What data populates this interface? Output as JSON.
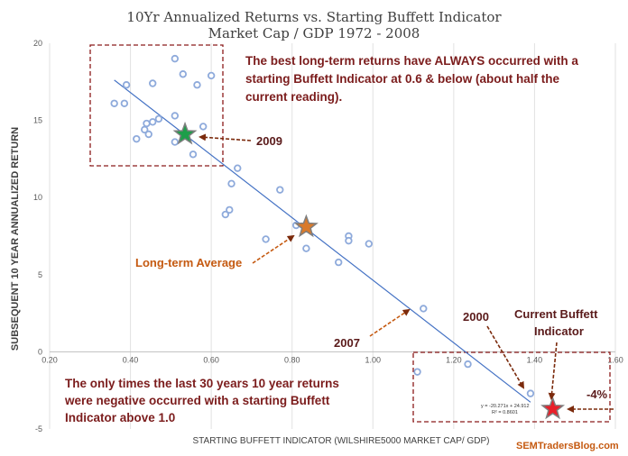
{
  "chart_data": {
    "type": "scatter",
    "title": "10Yr Annualized Returns vs. Starting Buffett Indicator",
    "subtitle": "Market Cap / GDP 1972 - 2008",
    "xlabel": "STARTING BUFFETT INDICATOR (WILSHIRE5000 MARKET CAP/ GDP)",
    "ylabel": "SUBSEQUENT 10 YEAR ANNUALIZED RETURN",
    "xlim": [
      0.2,
      1.6
    ],
    "ylim": [
      -5,
      20
    ],
    "x_ticks": [
      0.2,
      0.4,
      0.6,
      0.8,
      1.0,
      1.2,
      1.4,
      1.6
    ],
    "x_tick_labels": [
      "0.20",
      "0.40",
      "0.60",
      "0.80",
      "1.00",
      "1.20",
      "1.40",
      "1.60"
    ],
    "y_ticks": [
      -5,
      0,
      5,
      10,
      15,
      20
    ],
    "y_tick_labels": [
      "-5",
      "0",
      "5",
      "10",
      "15",
      "20"
    ],
    "grid": "vertical",
    "points": [
      {
        "x": 0.36,
        "y": 16.1
      },
      {
        "x": 0.385,
        "y": 16.1
      },
      {
        "x": 0.39,
        "y": 17.3
      },
      {
        "x": 0.415,
        "y": 13.8
      },
      {
        "x": 0.435,
        "y": 14.4
      },
      {
        "x": 0.44,
        "y": 14.8
      },
      {
        "x": 0.445,
        "y": 14.1
      },
      {
        "x": 0.455,
        "y": 14.9
      },
      {
        "x": 0.455,
        "y": 17.4
      },
      {
        "x": 0.47,
        "y": 15.1
      },
      {
        "x": 0.51,
        "y": 19.0
      },
      {
        "x": 0.51,
        "y": 15.3
      },
      {
        "x": 0.51,
        "y": 13.6
      },
      {
        "x": 0.53,
        "y": 18.0
      },
      {
        "x": 0.555,
        "y": 12.8
      },
      {
        "x": 0.565,
        "y": 17.3
      },
      {
        "x": 0.58,
        "y": 14.6
      },
      {
        "x": 0.6,
        "y": 17.9
      },
      {
        "x": 0.635,
        "y": 8.9
      },
      {
        "x": 0.645,
        "y": 9.2
      },
      {
        "x": 0.65,
        "y": 10.9
      },
      {
        "x": 0.665,
        "y": 11.9
      },
      {
        "x": 0.735,
        "y": 7.3
      },
      {
        "x": 0.77,
        "y": 10.5
      },
      {
        "x": 0.81,
        "y": 8.2
      },
      {
        "x": 0.835,
        "y": 6.7
      },
      {
        "x": 0.915,
        "y": 5.8
      },
      {
        "x": 0.94,
        "y": 7.5
      },
      {
        "x": 0.94,
        "y": 7.2
      },
      {
        "x": 0.99,
        "y": 7.0
      },
      {
        "x": 1.125,
        "y": 2.8
      },
      {
        "x": 1.11,
        "y": -1.3
      },
      {
        "x": 1.235,
        "y": -0.8
      },
      {
        "x": 1.39,
        "y": -2.7
      }
    ],
    "trendline": {
      "slope": -20.271,
      "intercept": 24.912,
      "x_range": [
        0.36,
        1.39
      ],
      "equation": "y = -20.271x + 24.912",
      "r_squared": "R² = 0.8601"
    },
    "highlighted_points": [
      {
        "label": "2009",
        "x": 0.535,
        "y": 14.1,
        "color": "#1e9e4a"
      },
      {
        "label": "Long-term Average",
        "x": 0.835,
        "y": 8.1,
        "color": "#d97a2b"
      },
      {
        "label": "Current Buffett Indicator",
        "x": 1.445,
        "y": -3.7,
        "color": "#e8202a"
      }
    ],
    "annotations": {
      "top_note": [
        "The best long-term returns have ALWAYS occurred with a",
        "starting Buffett Indicator at 0.6 & below (about half the",
        "current reading)."
      ],
      "bottom_note": [
        "The only times the last 30 years 10 year returns",
        "were negative occurred with a starting Buffett",
        "Indicator above 1.0"
      ],
      "label_2009": "2009",
      "label_long_term": "Long-term Average",
      "label_2007": "2007",
      "label_2000": "2000",
      "label_current": [
        "Current Buffett",
        "Indicator"
      ],
      "label_neg4": "-4%",
      "watermark": "SEMTradersBlog.com"
    },
    "colors": {
      "point": "#8eaadb",
      "trendline": "#4472c4",
      "box": "#8b1a1a",
      "arrow": "#7b2a0c"
    }
  }
}
